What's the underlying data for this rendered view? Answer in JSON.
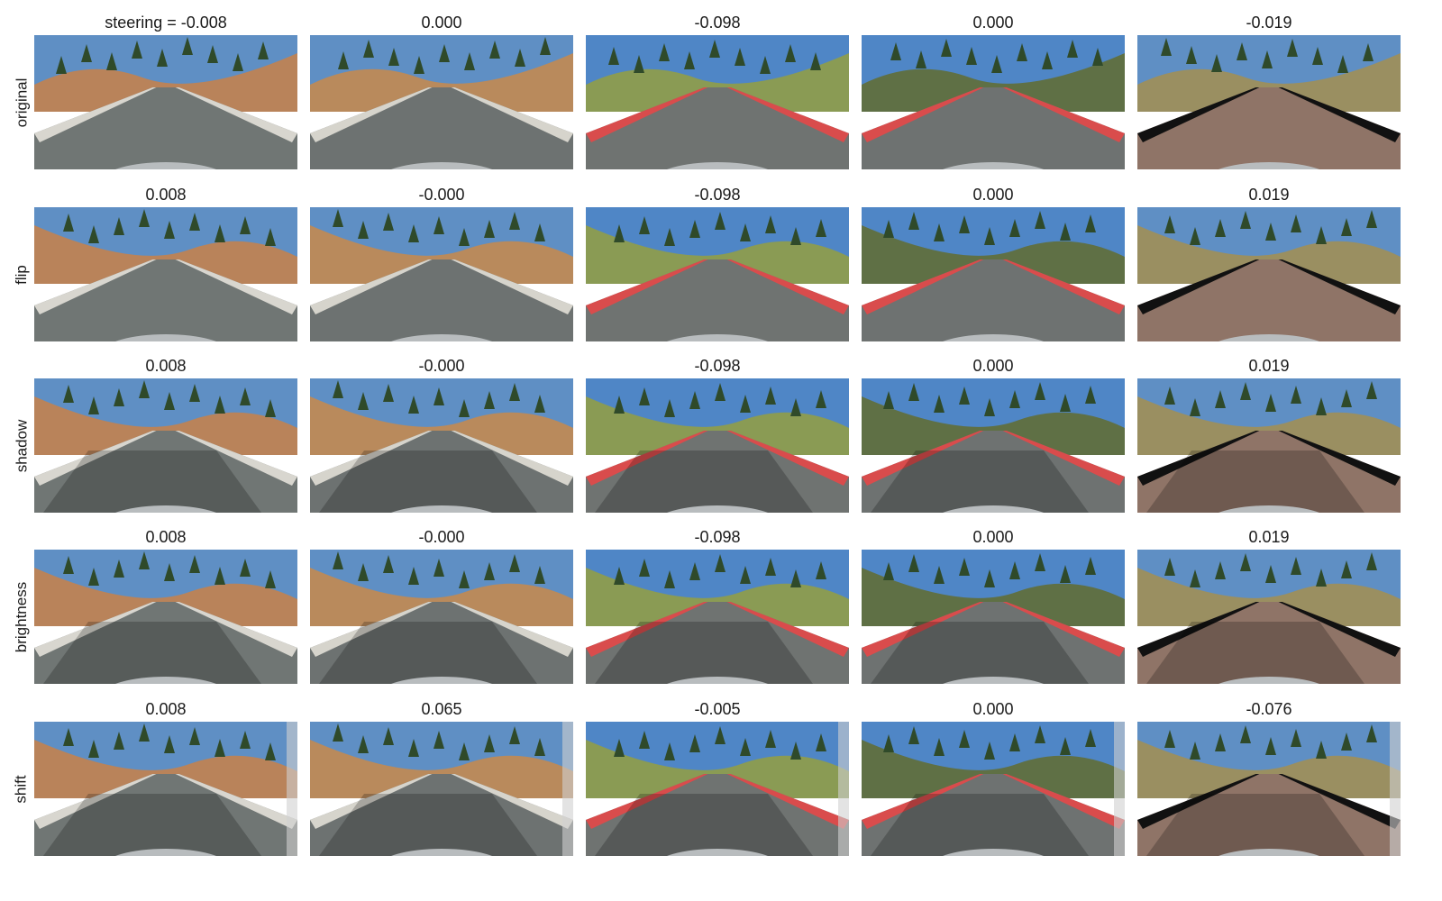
{
  "rows": [
    {
      "label": "original",
      "captions": [
        "steering = -0.008",
        "0.000",
        "-0.098",
        "0.000",
        "-0.019"
      ]
    },
    {
      "label": "flip",
      "captions": [
        "0.008",
        "-0.000",
        "-0.098",
        "0.000",
        "0.019"
      ]
    },
    {
      "label": "shadow",
      "captions": [
        "0.008",
        "-0.000",
        "-0.098",
        "0.000",
        "0.019"
      ]
    },
    {
      "label": "brightness",
      "captions": [
        "0.008",
        "-0.000",
        "-0.098",
        "0.000",
        "0.019"
      ]
    },
    {
      "label": "shift",
      "captions": [
        "0.008",
        "0.065",
        "-0.005",
        "0.000",
        "-0.076"
      ]
    }
  ],
  "columns": [
    {
      "scene": "desert-lake-road",
      "sky": "#5f8fc4",
      "ground": "#b9835a",
      "road": "#707674",
      "edge": "#d8d6cf"
    },
    {
      "scene": "lake-road",
      "sky": "#5f8fc4",
      "ground": "#b98a5c",
      "road": "#6d7271",
      "edge": "#d6d4cc"
    },
    {
      "scene": "forest-curve",
      "sky": "#4f86c6",
      "ground": "#8a9b54",
      "road": "#6f7371",
      "edge": "#d94c4c"
    },
    {
      "scene": "hill-curve",
      "sky": "#4f86c6",
      "ground": "#5f7045",
      "road": "#6e7271",
      "edge": "#d94c4c"
    },
    {
      "scene": "cobblestone-road",
      "sky": "#5f8fc4",
      "ground": "#9a8f61",
      "road": "#8f7467",
      "edge": "#111111"
    }
  ],
  "colors": {
    "text": "#1a1a1a",
    "background": "#ffffff",
    "hood": "#b8bcbe"
  }
}
